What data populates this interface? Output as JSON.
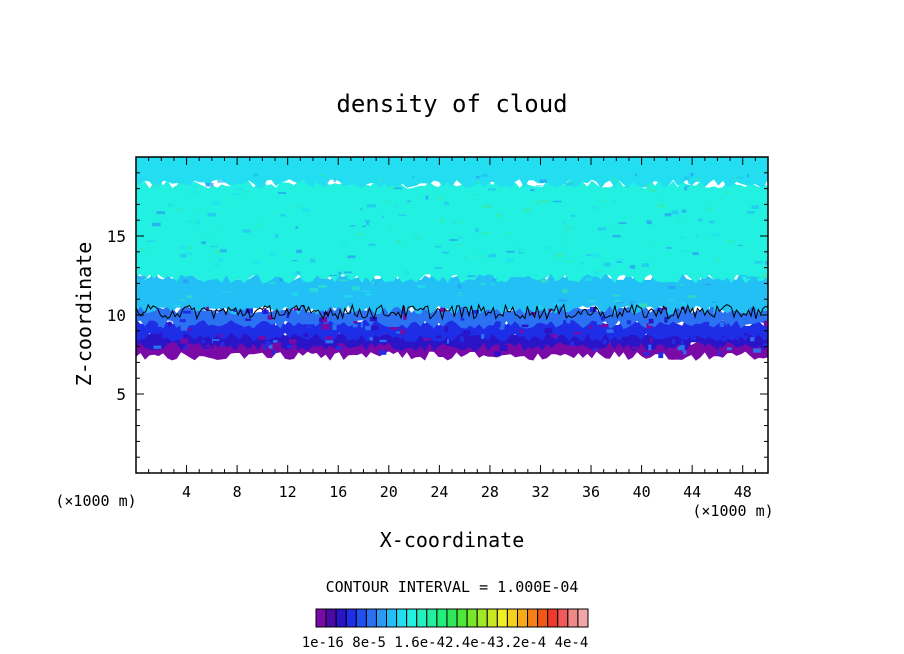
{
  "chart_data": {
    "type": "heatmap",
    "title": "density of cloud",
    "xlabel": "X-coordinate",
    "ylabel": "Z-coordinate",
    "x_unit_left": "(×1000 m)",
    "x_unit_right": "(×1000 m)",
    "xlim": [
      0,
      50
    ],
    "ylim": [
      0,
      20
    ],
    "x_ticks": [
      "4",
      "8",
      "12",
      "16",
      "20",
      "24",
      "28",
      "32",
      "36",
      "40",
      "44",
      "48"
    ],
    "y_ticks": [
      "5",
      "10",
      "15"
    ],
    "contour_interval_text": "CONTOUR INTERVAL = 1.000E-04",
    "colorbar_tick_labels": [
      "1e-16",
      "8e-5",
      "1.6e-4",
      "2.4e-4",
      "3.2e-4",
      "4e-4"
    ],
    "colorbar_label_text": "1e-16 8e-5 1.6e-42.4e-43.2e-4 4e-4",
    "colorbar_colors": [
      "#7a0aa8",
      "#4a0aa8",
      "#2a14c8",
      "#1e2ee6",
      "#2250f0",
      "#2a72f2",
      "#2a9af4",
      "#22c0f4",
      "#22def0",
      "#22f0e0",
      "#22f2c0",
      "#22f0a0",
      "#22ee7c",
      "#2ee85a",
      "#4ee83a",
      "#78e82a",
      "#a2e826",
      "#cae822",
      "#eef022",
      "#f6d21e",
      "#f6aa1a",
      "#f68016",
      "#f25814",
      "#ee3a2a",
      "#f05a5a",
      "#f08888",
      "#f4a6a6"
    ],
    "field_layers": [
      {
        "z_range": [
          7.4,
          8.4
        ],
        "color": "#7a0aa8"
      },
      {
        "z_range": [
          8.0,
          9.0
        ],
        "color": "#2a14c8"
      },
      {
        "z_range": [
          8.6,
          9.6
        ],
        "color": "#1e2ee6"
      },
      {
        "z_range": [
          9.4,
          10.4
        ],
        "color": "#2a72f2"
      },
      {
        "z_range": [
          10.3,
          12.5
        ],
        "color": "#22c0f4"
      },
      {
        "z_range": [
          12.3,
          18.3
        ],
        "color": "#22f0e0"
      },
      {
        "z_range": [
          18.3,
          20.0
        ],
        "color": "#22def0"
      }
    ],
    "contour_line": {
      "level": "1.000E-04",
      "mean_z": 10.2
    },
    "grid": false,
    "legend": "colorbar-bottom"
  }
}
